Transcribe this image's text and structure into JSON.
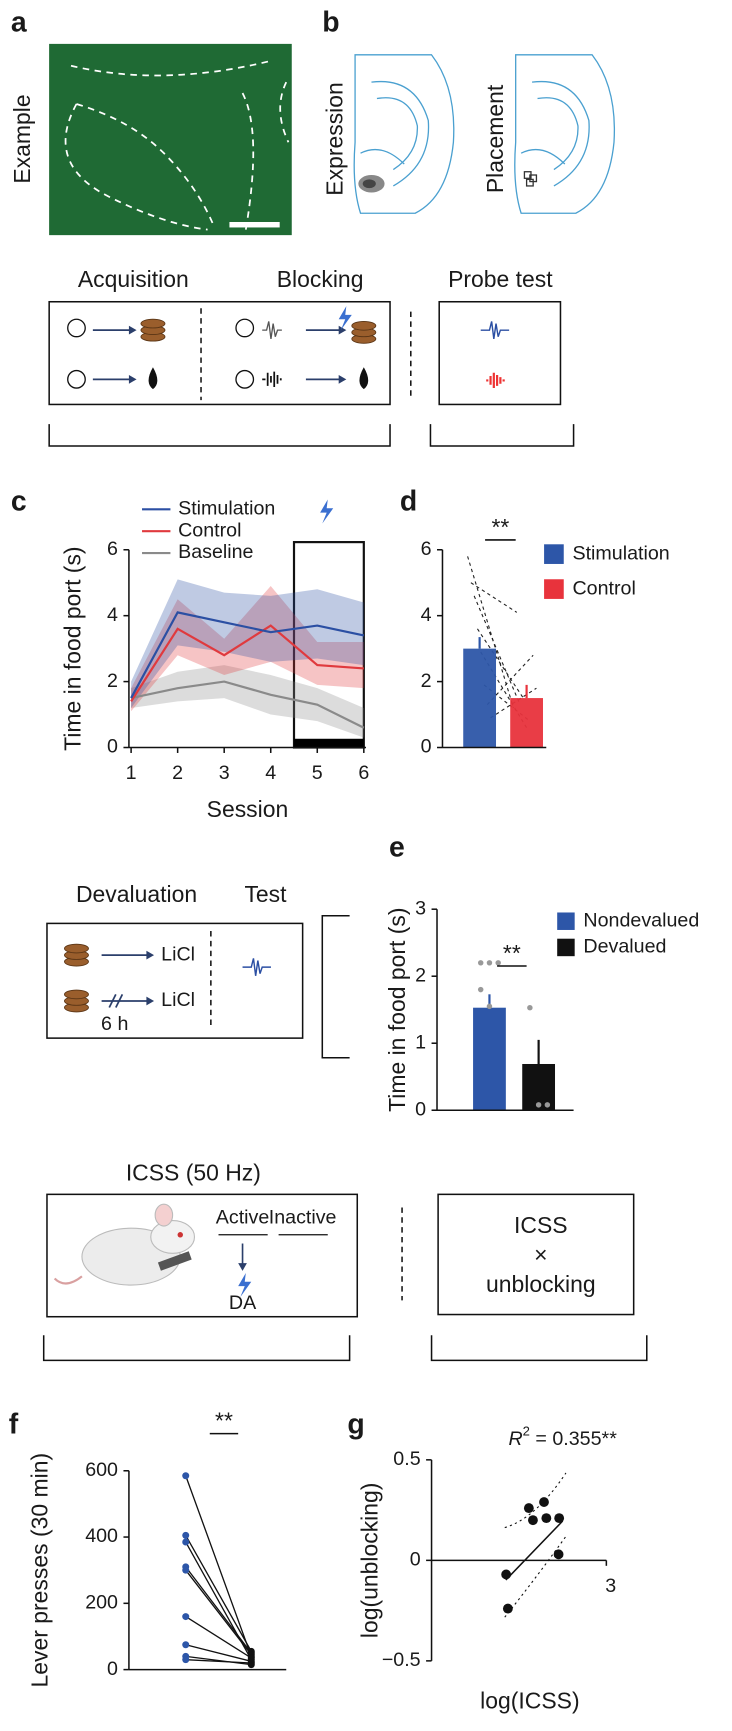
{
  "panel_letters": [
    "a",
    "b",
    "c",
    "d",
    "e",
    "f",
    "g"
  ],
  "histology": {
    "label": "Example"
  },
  "placement": {
    "expression_label": "Expression",
    "placement_label": "Placement"
  },
  "blocking_design": {
    "phases": [
      "Acquisition",
      "Blocking",
      "Probe test"
    ]
  },
  "devaluation_design": {
    "phases": [
      "Devaluation",
      "Test"
    ],
    "outcome": [
      "LiCl",
      "LiCl"
    ],
    "delay": "6 h"
  },
  "icss_design": {
    "title": "ICSS (50 Hz)",
    "levers": [
      "Active",
      "Inactive"
    ],
    "signal": "DA",
    "box_lines": [
      "ICSS",
      "×",
      "unblocking"
    ]
  },
  "chart_data": [
    {
      "type": "line",
      "x": [
        1,
        2,
        3,
        4,
        5,
        6
      ],
      "series": [
        {
          "name": "Stimulation",
          "color": "#2b4fa3",
          "values": [
            1.5,
            4.1,
            3.8,
            3.5,
            3.7,
            3.4
          ],
          "lower": [
            1.2,
            3.1,
            2.9,
            2.6,
            2.7,
            2.5
          ],
          "upper": [
            2.0,
            5.1,
            4.7,
            4.6,
            4.8,
            4.4
          ]
        },
        {
          "name": "Control",
          "color": "#e03a3e",
          "values": [
            1.4,
            3.6,
            2.8,
            3.7,
            2.5,
            2.4
          ],
          "lower": [
            1.1,
            2.8,
            2.2,
            2.6,
            1.9,
            1.8
          ],
          "upper": [
            1.8,
            4.5,
            3.3,
            4.9,
            3.2,
            3.2
          ]
        },
        {
          "name": "Baseline",
          "color": "#8a8a8a",
          "values": [
            1.5,
            1.8,
            2.0,
            1.6,
            1.3,
            0.6
          ],
          "lower": [
            1.2,
            1.4,
            1.5,
            1.0,
            0.8,
            0.3
          ],
          "upper": [
            1.8,
            2.3,
            2.5,
            2.2,
            1.8,
            1.2
          ]
        }
      ],
      "xlim": [
        1,
        6
      ],
      "ylim": [
        0,
        6
      ],
      "xticks": [
        1,
        2,
        3,
        4,
        5,
        6
      ],
      "yticks": [
        0,
        2,
        4,
        6
      ],
      "xlabel": "Session",
      "ylabel": "Time in food port (s)",
      "highlight": [
        4.5,
        6
      ]
    },
    {
      "type": "bar",
      "series": [
        {
          "name": "Stimulation",
          "color": "#2d56a8",
          "values": [
            3.0
          ],
          "errors": [
            0.35
          ]
        },
        {
          "name": "Control",
          "color": "#e8333c",
          "values": [
            1.5
          ],
          "errors": [
            0.4
          ]
        }
      ],
      "pairs": [
        [
          5.8,
          1.2
        ],
        [
          5.0,
          4.1
        ],
        [
          4.6,
          1.3
        ],
        [
          3.6,
          1.5
        ],
        [
          2.9,
          0.6
        ],
        [
          1.9,
          0.8
        ],
        [
          1.3,
          2.8
        ],
        [
          0.9,
          1.8
        ]
      ],
      "ylim": [
        0,
        6
      ],
      "yticks": [
        0,
        2,
        4,
        6
      ],
      "annotation": "**"
    },
    {
      "type": "bar",
      "series": [
        {
          "name": "Nondevalued",
          "color": "#2d56a8",
          "values": [
            1.53
          ],
          "errors": [
            0.2
          ],
          "points": [
            2.2,
            2.2,
            2.2,
            1.8,
            1.55
          ]
        },
        {
          "name": "Devalued",
          "color": "#111111",
          "values": [
            0.69
          ],
          "errors": [
            0.36
          ],
          "points": [
            1.53,
            0.08,
            0.08
          ]
        }
      ],
      "ylim": [
        0,
        3
      ],
      "yticks": [
        0,
        1,
        2,
        3
      ],
      "ylabel": "Time in food port (s)",
      "annotation": "**"
    },
    {
      "type": "paired",
      "pairs": [
        [
          585,
          40
        ],
        [
          405,
          55
        ],
        [
          385,
          30
        ],
        [
          310,
          50
        ],
        [
          300,
          45
        ],
        [
          160,
          35
        ],
        [
          75,
          25
        ],
        [
          40,
          15
        ],
        [
          30,
          20
        ]
      ],
      "colors": [
        "#2d56a8",
        "#111111"
      ],
      "ylim": [
        0,
        600
      ],
      "yticks": [
        0,
        200,
        400,
        600
      ],
      "ylabel": "Lever presses (30 min)",
      "annotation": "**"
    },
    {
      "type": "scatter",
      "x": [
        1.28,
        1.31,
        1.67,
        1.74,
        1.93,
        1.97,
        2.19,
        2.18
      ],
      "y": [
        -0.07,
        -0.24,
        0.26,
        0.2,
        0.29,
        0.21,
        0.21,
        0.03
      ],
      "xlim": [
        0,
        3
      ],
      "xticks": [
        3
      ],
      "ylim": [
        -0.5,
        0.5
      ],
      "yticks": [
        0.5,
        0,
        {
          "value": -0.5,
          "label": "−0.5"
        }
      ],
      "xlabel": "log(ICSS)",
      "ylabel": "log(unblocking)",
      "annotation": [
        "R",
        "2",
        " = 0.355**"
      ]
    }
  ]
}
